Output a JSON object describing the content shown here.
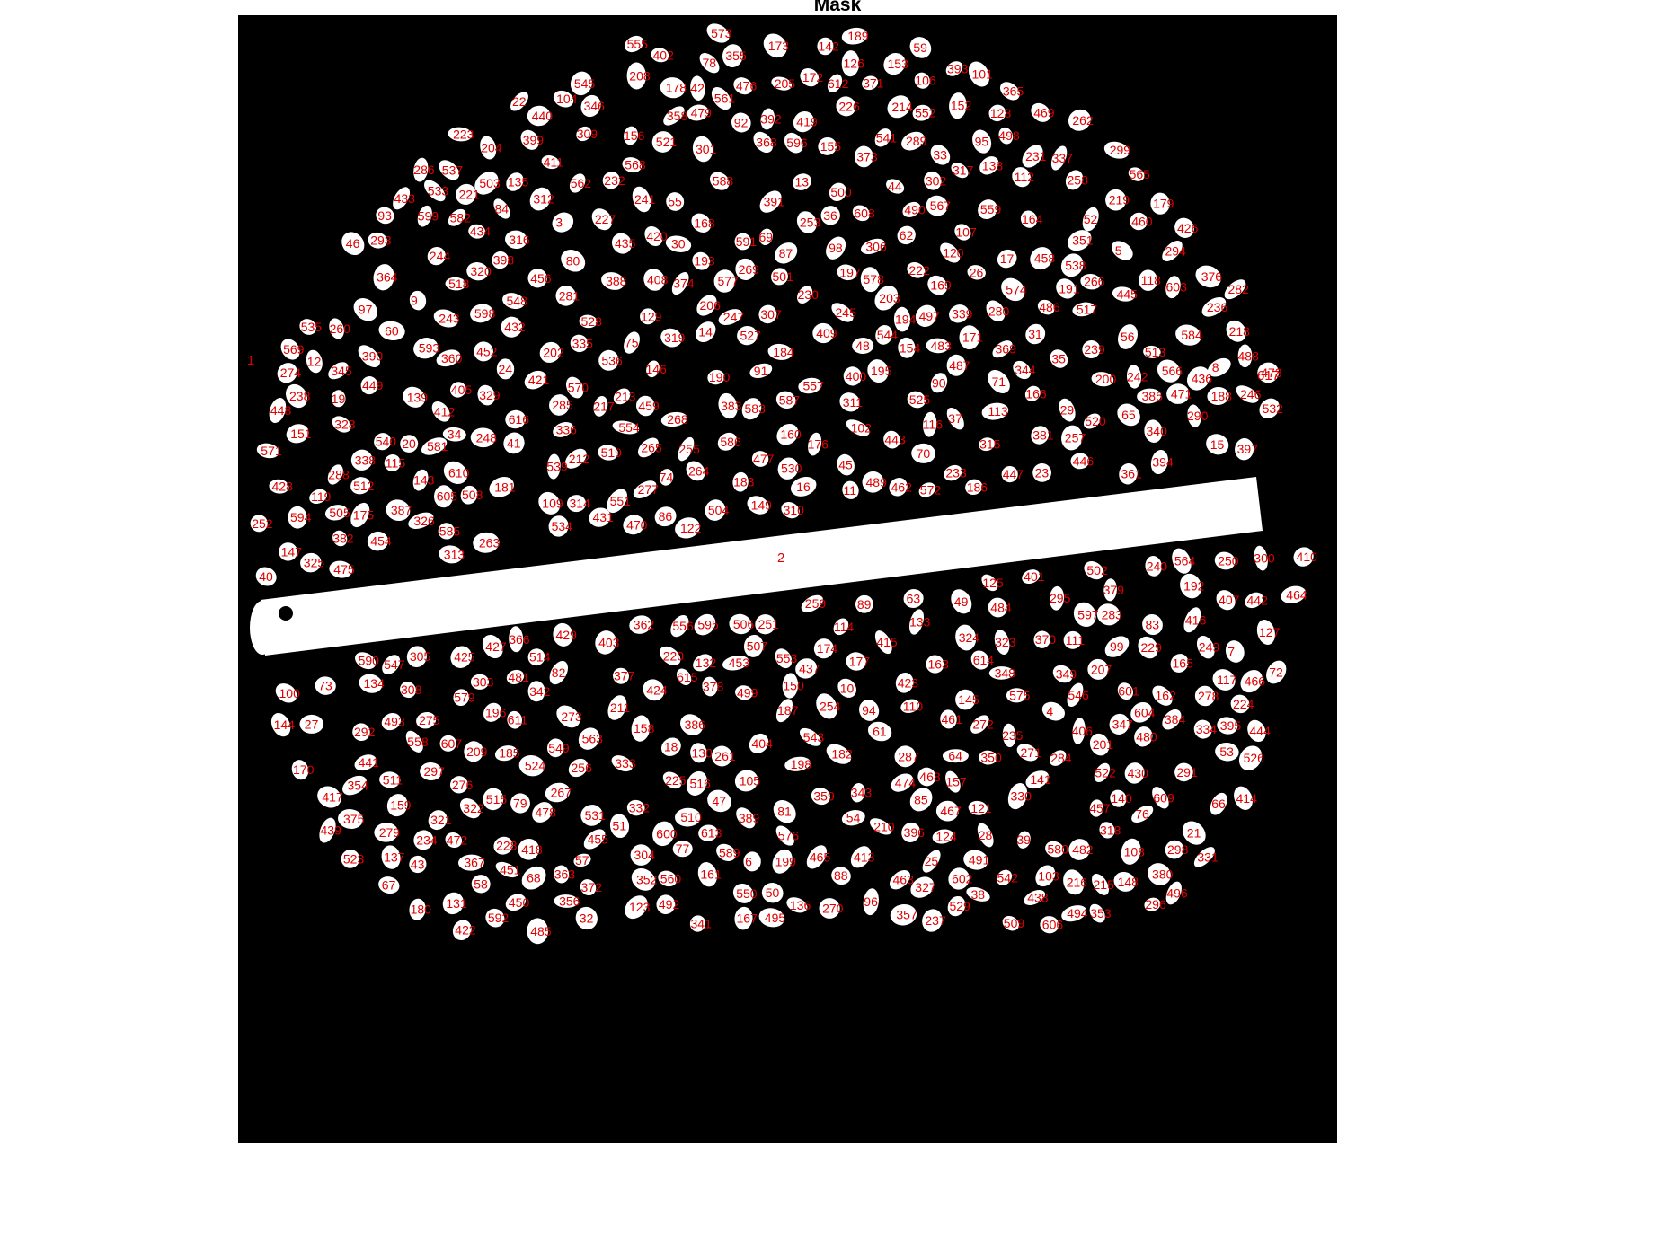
{
  "figure": {
    "title": "Mask",
    "image": "binary-mask",
    "label_color": "#e00000",
    "background_color": "#000000",
    "foreground_color": "#ffffff"
  },
  "labels": {
    "first": "1",
    "ruler_label": "2",
    "last": "617",
    "count": 617
  },
  "sample_labels": [
    "1",
    "2",
    "3",
    "4",
    "5",
    "6",
    "7",
    "8",
    "9",
    "10",
    "17",
    "25",
    "26",
    "39",
    "65",
    "93",
    "106",
    "130",
    "202",
    "206",
    "217",
    "263",
    "289",
    "300",
    "347",
    "377",
    "397",
    "400",
    "450",
    "478",
    "497",
    "503",
    "536",
    "551",
    "580",
    "591",
    "596",
    "608",
    "612",
    "616",
    "617"
  ]
}
